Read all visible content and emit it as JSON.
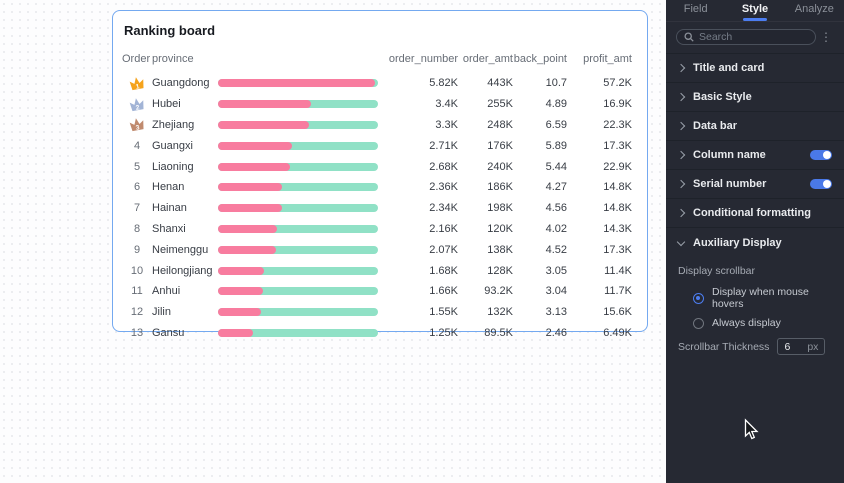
{
  "board": {
    "title": "Ranking board",
    "columns": {
      "order": "Order",
      "province": "province",
      "metrics": [
        "order_number",
        "order_amt",
        "back_point",
        "profit_amt"
      ]
    },
    "rows": [
      {
        "rank": "1",
        "medal": "gold",
        "province": "Guangdong",
        "values": [
          "5.82K",
          "443K",
          "10.7",
          "57.2K"
        ],
        "bar_pct": 98
      },
      {
        "rank": "2",
        "medal": "silver",
        "province": "Hubei",
        "values": [
          "3.4K",
          "255K",
          "4.89",
          "16.9K"
        ],
        "bar_pct": 58
      },
      {
        "rank": "3",
        "medal": "bronze",
        "province": "Zhejiang",
        "values": [
          "3.3K",
          "248K",
          "6.59",
          "22.3K"
        ],
        "bar_pct": 57
      },
      {
        "rank": "4",
        "province": "Guangxi",
        "values": [
          "2.71K",
          "176K",
          "5.89",
          "17.3K"
        ],
        "bar_pct": 46
      },
      {
        "rank": "5",
        "province": "Liaoning",
        "values": [
          "2.68K",
          "240K",
          "5.44",
          "22.9K"
        ],
        "bar_pct": 45
      },
      {
        "rank": "6",
        "province": "Henan",
        "values": [
          "2.36K",
          "186K",
          "4.27",
          "14.8K"
        ],
        "bar_pct": 40
      },
      {
        "rank": "7",
        "province": "Hainan",
        "values": [
          "2.34K",
          "198K",
          "4.56",
          "14.8K"
        ],
        "bar_pct": 40
      },
      {
        "rank": "8",
        "province": "Shanxi",
        "values": [
          "2.16K",
          "120K",
          "4.02",
          "14.3K"
        ],
        "bar_pct": 37
      },
      {
        "rank": "9",
        "province": "Neimenggu",
        "values": [
          "2.07K",
          "138K",
          "4.52",
          "17.3K"
        ],
        "bar_pct": 36
      },
      {
        "rank": "10",
        "province": "Heilongjiang",
        "values": [
          "1.68K",
          "128K",
          "3.05",
          "11.4K"
        ],
        "bar_pct": 29
      },
      {
        "rank": "11",
        "province": "Anhui",
        "values": [
          "1.66K",
          "93.2K",
          "3.04",
          "11.7K"
        ],
        "bar_pct": 28
      },
      {
        "rank": "12",
        "province": "Jilin",
        "values": [
          "1.55K",
          "132K",
          "3.13",
          "15.6K"
        ],
        "bar_pct": 27
      },
      {
        "rank": "13",
        "province": "Gansu",
        "values": [
          "1.25K",
          "89.5K",
          "2.46",
          "6.49K"
        ],
        "bar_pct": 22
      }
    ],
    "colors": {
      "bar_fill": "#f87c9f",
      "bar_track": "#90e1c6",
      "card_border": "#74a9f0",
      "medal_gold": "#f5a31c",
      "medal_silver": "#a2b4d6",
      "medal_bronze": "#c08a6e"
    }
  },
  "panel": {
    "tabs": [
      {
        "label": "Field",
        "active": false
      },
      {
        "label": "Style",
        "active": true
      },
      {
        "label": "Analyze",
        "active": false
      }
    ],
    "search": {
      "placeholder": "Search",
      "icon": "search-icon",
      "more_icon": "kebab-menu-icon",
      "more_glyph": "⋮"
    },
    "sections": [
      {
        "label": "Title and card",
        "chevron": "right"
      },
      {
        "label": "Basic Style",
        "chevron": "right"
      },
      {
        "label": "Data bar",
        "chevron": "right"
      },
      {
        "label": "Column name",
        "chevron": "right",
        "toggle": true
      },
      {
        "label": "Serial number",
        "chevron": "right",
        "toggle": true
      },
      {
        "label": "Conditional formatting",
        "chevron": "right"
      },
      {
        "label": "Auxiliary Display",
        "chevron": "down",
        "expanded": true
      }
    ],
    "auxiliary": {
      "scrollbar_label": "Display scrollbar",
      "radios": [
        {
          "label": "Display when mouse hovers",
          "selected": true
        },
        {
          "label": "Always display",
          "selected": false
        }
      ],
      "thickness_label": "Scrollbar Thickness",
      "thickness_value": "6",
      "thickness_unit": "px"
    },
    "colors": {
      "background": "#262933",
      "accent": "#4c7df0",
      "toggle_on": "#4a79e8"
    }
  }
}
